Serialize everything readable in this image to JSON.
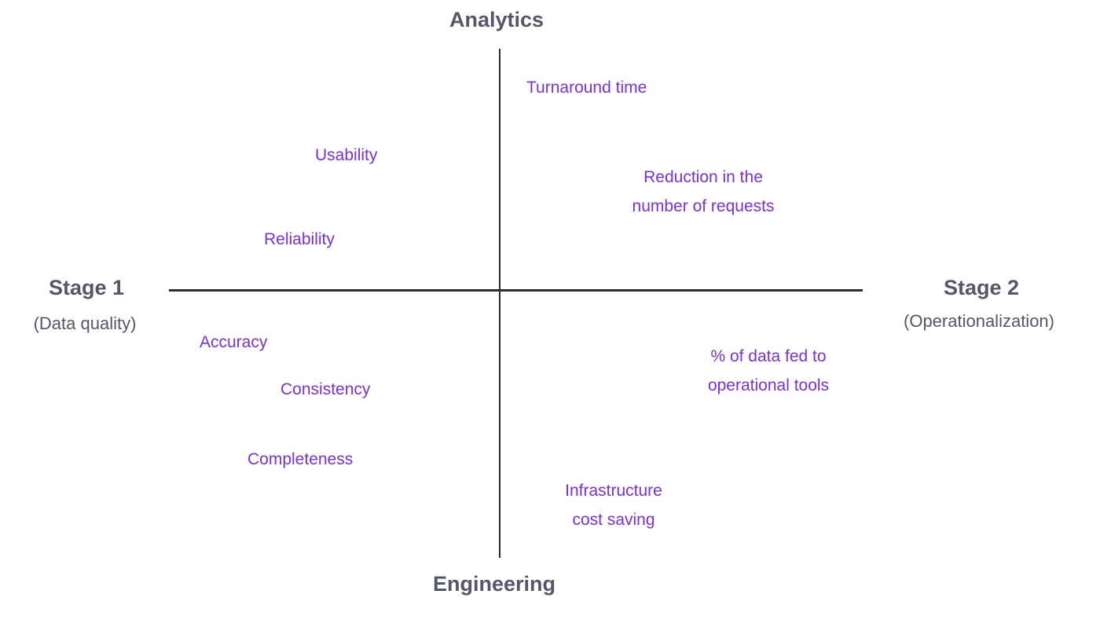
{
  "diagram": {
    "type": "quadrant",
    "colors": {
      "item_text": "#7b2fe2",
      "axis_line": "#2b2c35",
      "pole_text": "#54566b",
      "background": "#ffffff"
    },
    "poles": {
      "top": {
        "title": "Analytics"
      },
      "bottom": {
        "title": "Engineering"
      },
      "left": {
        "title": "Stage 1",
        "subtitle": "(Data quality)"
      },
      "right": {
        "title": "Stage 2",
        "subtitle": "(Operationalization)"
      }
    },
    "quadrants": {
      "analytics_stage1": {
        "items": [
          {
            "label": "Usability"
          },
          {
            "label": "Reliability"
          }
        ]
      },
      "analytics_stage2": {
        "items": [
          {
            "label": "Turnaround time"
          },
          {
            "label": "Reduction in the\nnumber of requests"
          }
        ]
      },
      "engineering_stage1": {
        "items": [
          {
            "label": "Accuracy"
          },
          {
            "label": "Consistency"
          },
          {
            "label": "Completeness"
          }
        ]
      },
      "engineering_stage2": {
        "items": [
          {
            "label": "% of data fed to\noperational tools"
          },
          {
            "label": "Infrastructure\ncost saving"
          }
        ]
      }
    }
  }
}
